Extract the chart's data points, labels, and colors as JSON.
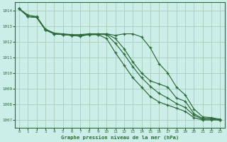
{
  "bg_color": "#cceee8",
  "grid_color": "#aaccbb",
  "line_color": "#2d6b3a",
  "tick_color": "#2d6b3a",
  "xlabel": "Graphe pression niveau de la mer (hPa)",
  "xlabel_color": "#2d6b3a",
  "ylim": [
    1006.5,
    1014.5
  ],
  "xlim": [
    -0.5,
    23.5
  ],
  "yticks": [
    1007,
    1008,
    1009,
    1010,
    1011,
    1012,
    1013,
    1014
  ],
  "xticks": [
    0,
    1,
    2,
    3,
    4,
    5,
    6,
    7,
    8,
    9,
    10,
    11,
    12,
    13,
    14,
    15,
    16,
    17,
    18,
    19,
    20,
    21,
    22,
    23
  ],
  "series": [
    [
      1014.1,
      1013.7,
      1013.6,
      1012.8,
      1012.55,
      1012.5,
      1012.45,
      1012.45,
      1012.5,
      1012.5,
      1012.5,
      1012.2,
      1011.55,
      1010.7,
      1010.0,
      1009.5,
      1009.3,
      1009.1,
      1008.4,
      1008.2,
      1007.4,
      1007.1,
      1007.1,
      1007.0
    ],
    [
      1014.1,
      1013.6,
      1013.55,
      1012.75,
      1012.5,
      1012.45,
      1012.4,
      1012.4,
      1012.45,
      1012.45,
      1012.2,
      1011.3,
      1010.5,
      1009.7,
      1009.1,
      1008.5,
      1008.15,
      1007.95,
      1007.75,
      1007.55,
      1007.15,
      1007.0,
      1007.0,
      1007.0
    ],
    [
      1014.1,
      1013.6,
      1013.55,
      1012.75,
      1012.5,
      1012.45,
      1012.4,
      1012.35,
      1012.5,
      1012.5,
      1012.5,
      1012.4,
      1012.5,
      1012.5,
      1012.3,
      1011.6,
      1010.6,
      1010.0,
      1009.1,
      1008.6,
      1007.7,
      1007.2,
      1007.15,
      1007.05
    ],
    [
      1014.1,
      1013.6,
      1013.55,
      1012.75,
      1012.5,
      1012.45,
      1012.4,
      1012.35,
      1012.45,
      1012.45,
      1012.45,
      1011.9,
      1011.2,
      1010.4,
      1009.7,
      1009.15,
      1008.7,
      1008.4,
      1008.05,
      1007.8,
      1007.3,
      1007.05,
      1007.05,
      1007.0
    ]
  ]
}
